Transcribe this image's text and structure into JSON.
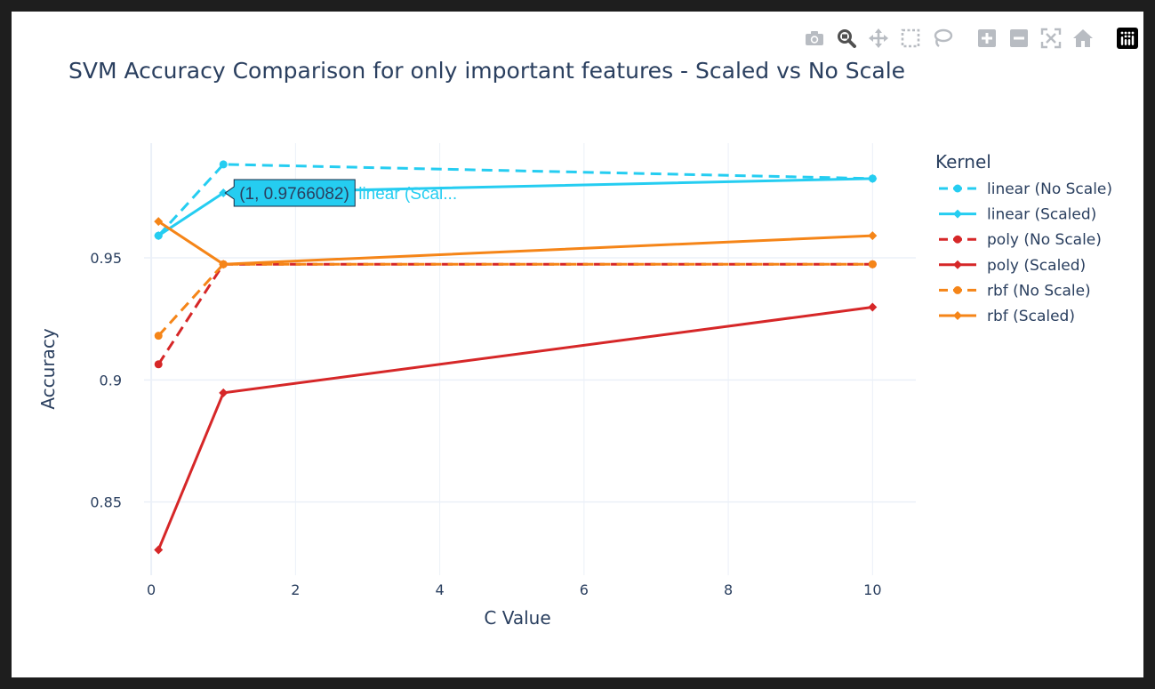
{
  "modebar": {
    "buttons": [
      "camera-icon",
      "zoom-icon",
      "pan-icon",
      "box-select-icon",
      "lasso-icon",
      "zoom-in-icon",
      "zoom-out-icon",
      "autoscale-icon",
      "reset-axes-icon",
      "plotly-logo-icon"
    ],
    "active": "zoom-icon"
  },
  "chart_data": {
    "type": "line",
    "title": "SVM Accuracy Comparison for only important features - Scaled vs No Scale",
    "xlabel": "C Value",
    "ylabel": "Accuracy",
    "xlim": [
      -0.1,
      10.6
    ],
    "ylim": [
      0.82,
      0.997
    ],
    "xticks": [
      0,
      2,
      4,
      6,
      8,
      10
    ],
    "yticks": [
      0.85,
      0.9,
      0.95
    ],
    "ytick_labels": [
      "0.85",
      "0.9",
      "0.95"
    ],
    "grid": true,
    "legend_title": "Kernel",
    "legend_position": "right",
    "series": [
      {
        "name": "linear (No Scale)",
        "color": "#25cdf1",
        "dash": "dash",
        "marker": "circle",
        "x": [
          0.1,
          1,
          10
        ],
        "y": [
          0.9591,
          0.9883,
          0.9825
        ]
      },
      {
        "name": "linear (Scaled)",
        "color": "#25cdf1",
        "dash": "solid",
        "marker": "diamond",
        "x": [
          0.1,
          1,
          10
        ],
        "y": [
          0.9591,
          0.9766082,
          0.9825
        ]
      },
      {
        "name": "poly (No Scale)",
        "color": "#d62728",
        "dash": "dash",
        "marker": "circle",
        "x": [
          0.1,
          1,
          10
        ],
        "y": [
          0.9064,
          0.9474,
          0.9474
        ]
      },
      {
        "name": "poly (Scaled)",
        "color": "#d62728",
        "dash": "solid",
        "marker": "diamond",
        "x": [
          0.1,
          1,
          10
        ],
        "y": [
          0.8304,
          0.8947,
          0.9298
        ]
      },
      {
        "name": "rbf (No Scale)",
        "color": "#f58518",
        "dash": "dash",
        "marker": "circle",
        "x": [
          0.1,
          1,
          10
        ],
        "y": [
          0.9181,
          0.9474,
          0.9474
        ]
      },
      {
        "name": "rbf (Scaled)",
        "color": "#f58518",
        "dash": "solid",
        "marker": "diamond",
        "x": [
          0.1,
          1,
          10
        ],
        "y": [
          0.9649,
          0.9474,
          0.9591
        ]
      }
    ],
    "hover": {
      "series_index": 1,
      "point_index": 1,
      "label": "(1, 0.9766082)",
      "name": "linear (Scal..."
    }
  }
}
